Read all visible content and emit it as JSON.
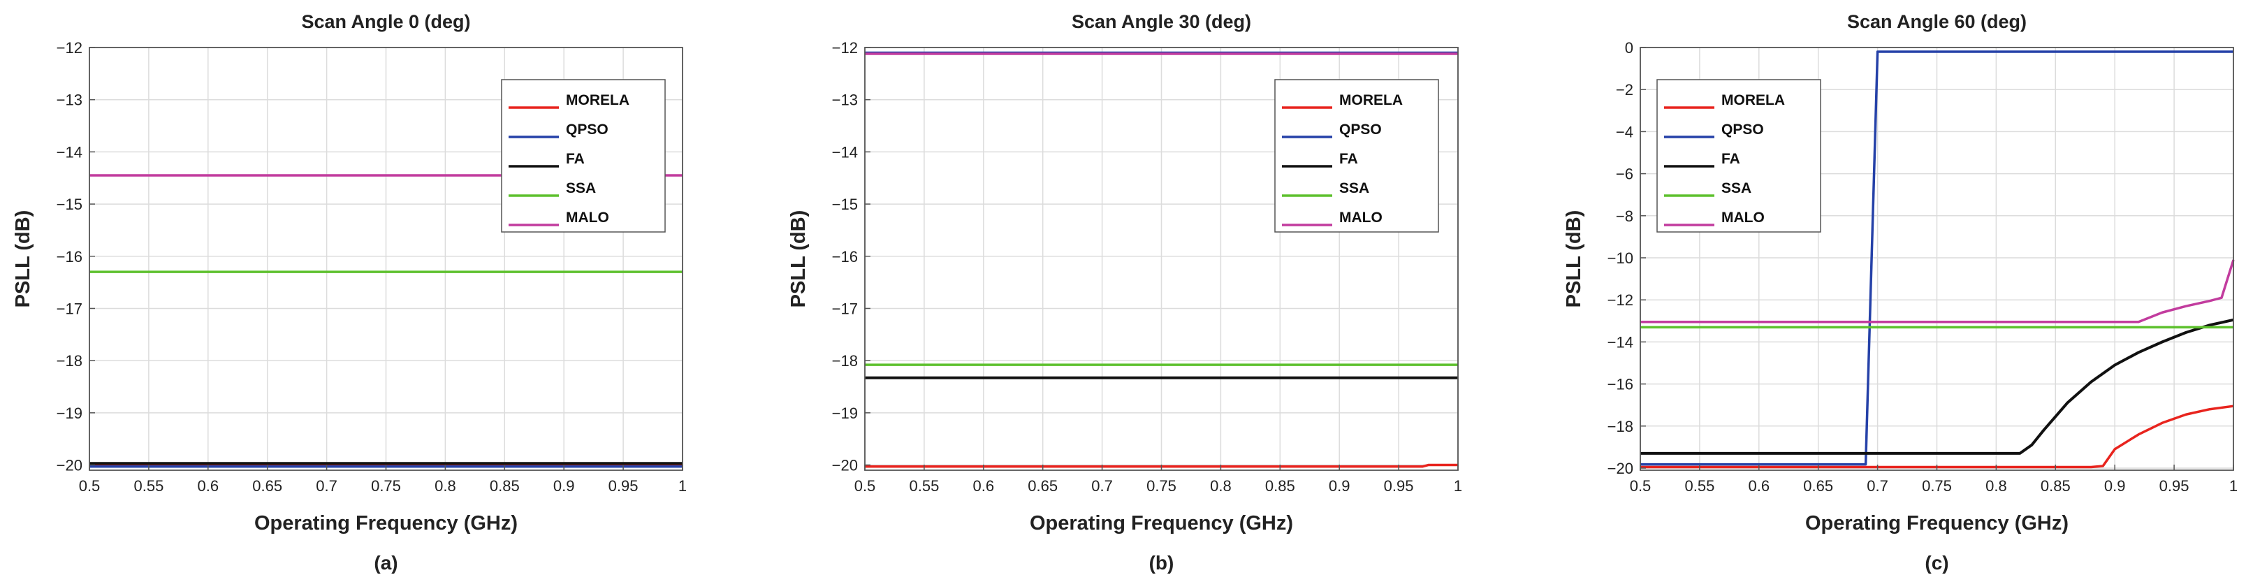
{
  "chart_data": [
    {
      "type": "line",
      "panel_label": "(a)",
      "title": "Scan Angle 0 (deg)",
      "xlabel": "Operating Frequency (GHz)",
      "ylabel": "PSLL (dB)",
      "xlim": [
        0.5,
        1
      ],
      "ylim": [
        -20.1,
        -12
      ],
      "xticks": [
        0.5,
        0.55,
        0.6,
        0.65,
        0.7,
        0.75,
        0.8,
        0.85,
        0.9,
        0.95,
        1
      ],
      "xtick_labels": [
        "0.5",
        "0.55",
        "0.6",
        "0.65",
        "0.7",
        "0.75",
        "0.8",
        "0.85",
        "0.9",
        "0.95",
        "1"
      ],
      "yticks": [
        -20,
        -19,
        -18,
        -17,
        -16,
        -15,
        -14,
        -13,
        -12
      ],
      "ytick_labels": [
        "−20",
        "−19",
        "−18",
        "−17",
        "−16",
        "−15",
        "−14",
        "−13",
        "−12"
      ],
      "grid": true,
      "legend_position": "top-right",
      "series": [
        {
          "name": "MORELA",
          "color": "#e8241e",
          "x": [
            0.5,
            1
          ],
          "y": [
            -20.0,
            -20.0
          ]
        },
        {
          "name": "QPSO",
          "color": "#2541a8",
          "x": [
            0.5,
            1
          ],
          "y": [
            -20.03,
            -20.03
          ]
        },
        {
          "name": "FA",
          "color": "#111111",
          "x": [
            0.5,
            1
          ],
          "y": [
            -19.97,
            -19.97
          ]
        },
        {
          "name": "SSA",
          "color": "#5ec12e",
          "x": [
            0.5,
            1
          ],
          "y": [
            -16.3,
            -16.3
          ]
        },
        {
          "name": "MALO",
          "color": "#c23c9e",
          "x": [
            0.5,
            1
          ],
          "y": [
            -14.45,
            -14.45
          ]
        }
      ]
    },
    {
      "type": "line",
      "panel_label": "(b)",
      "title": "Scan Angle 30 (deg)",
      "xlabel": "Operating Frequency (GHz)",
      "ylabel": "PSLL (dB)",
      "xlim": [
        0.5,
        1
      ],
      "ylim": [
        -20.1,
        -12
      ],
      "xticks": [
        0.5,
        0.55,
        0.6,
        0.65,
        0.7,
        0.75,
        0.8,
        0.85,
        0.9,
        0.95,
        1
      ],
      "xtick_labels": [
        "0.5",
        "0.55",
        "0.6",
        "0.65",
        "0.7",
        "0.75",
        "0.8",
        "0.85",
        "0.9",
        "0.95",
        "1"
      ],
      "yticks": [
        -20,
        -19,
        -18,
        -17,
        -16,
        -15,
        -14,
        -13,
        -12
      ],
      "ytick_labels": [
        "−20",
        "−19",
        "−18",
        "−17",
        "−16",
        "−15",
        "−14",
        "−13",
        "−12"
      ],
      "grid": true,
      "legend_position": "top-right",
      "series": [
        {
          "name": "MORELA",
          "color": "#e8241e",
          "x": [
            0.5,
            0.97,
            0.975,
            1
          ],
          "y": [
            -20.03,
            -20.03,
            -20.0,
            -20.0
          ]
        },
        {
          "name": "QPSO",
          "color": "#2541a8",
          "x": [
            0.5,
            1
          ],
          "y": [
            -12.1,
            -12.1
          ]
        },
        {
          "name": "FA",
          "color": "#111111",
          "x": [
            0.5,
            1
          ],
          "y": [
            -18.33,
            -18.33
          ]
        },
        {
          "name": "SSA",
          "color": "#5ec12e",
          "x": [
            0.5,
            1
          ],
          "y": [
            -18.08,
            -18.08
          ]
        },
        {
          "name": "MALO",
          "color": "#c23c9e",
          "x": [
            0.5,
            1
          ],
          "y": [
            -12.12,
            -12.12
          ]
        }
      ]
    },
    {
      "type": "line",
      "panel_label": "(c)",
      "title": "Scan Angle 60 (deg)",
      "xlabel": "Operating Frequency (GHz)",
      "ylabel": "PSLL (dB)",
      "xlim": [
        0.5,
        1
      ],
      "ylim": [
        -20.1,
        0
      ],
      "xticks": [
        0.5,
        0.55,
        0.6,
        0.65,
        0.7,
        0.75,
        0.8,
        0.85,
        0.9,
        0.95,
        1
      ],
      "xtick_labels": [
        "0.5",
        "0.55",
        "0.6",
        "0.65",
        "0.7",
        "0.75",
        "0.8",
        "0.85",
        "0.9",
        "0.95",
        "1"
      ],
      "yticks": [
        -20,
        -18,
        -16,
        -14,
        -12,
        -10,
        -8,
        -6,
        -4,
        -2,
        0
      ],
      "ytick_labels": [
        "−20",
        "−18",
        "−16",
        "−14",
        "−12",
        "−10",
        "−8",
        "−6",
        "−4",
        "−2",
        "0"
      ],
      "grid": true,
      "legend_position": "top-left",
      "series": [
        {
          "name": "MORELA",
          "color": "#e8241e",
          "x": [
            0.5,
            0.88,
            0.89,
            0.9,
            0.92,
            0.94,
            0.96,
            0.98,
            1.0
          ],
          "y": [
            -19.95,
            -19.95,
            -19.9,
            -19.1,
            -18.4,
            -17.85,
            -17.45,
            -17.2,
            -17.05
          ]
        },
        {
          "name": "QPSO",
          "color": "#2541a8",
          "x": [
            0.5,
            0.69,
            0.7,
            1.0
          ],
          "y": [
            -19.82,
            -19.82,
            -0.2,
            -0.2
          ]
        },
        {
          "name": "FA",
          "color": "#111111",
          "x": [
            0.5,
            0.82,
            0.83,
            0.84,
            0.86,
            0.88,
            0.9,
            0.92,
            0.94,
            0.96,
            0.98,
            1.0
          ],
          "y": [
            -19.3,
            -19.3,
            -18.9,
            -18.2,
            -16.9,
            -15.9,
            -15.1,
            -14.5,
            -14.0,
            -13.55,
            -13.2,
            -12.95
          ]
        },
        {
          "name": "SSA",
          "color": "#5ec12e",
          "x": [
            0.5,
            1.0
          ],
          "y": [
            -13.3,
            -13.3
          ]
        },
        {
          "name": "MALO",
          "color": "#c23c9e",
          "x": [
            0.5,
            0.92,
            0.94,
            0.96,
            0.98,
            0.99,
            1.0
          ],
          "y": [
            -13.05,
            -13.05,
            -12.6,
            -12.3,
            -12.05,
            -11.9,
            -10.1
          ]
        }
      ]
    }
  ]
}
